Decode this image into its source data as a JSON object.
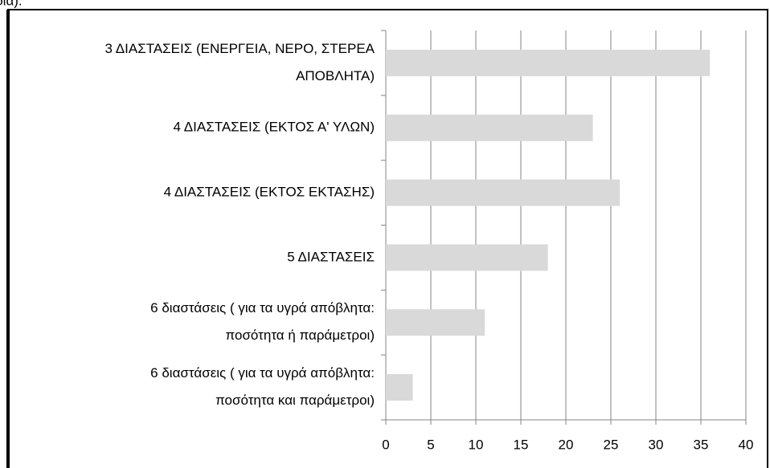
{
  "caption": "ρια).",
  "chart_data": {
    "type": "barh",
    "categories": [
      [
        "3 ΔΙΑΣΤΑΣΕΙΣ (ΕΝΕΡΓΕΙΑ, ΝΕΡΟ, ΣΤΕΡΕΑ",
        "ΑΠΟΒΛΗΤΑ)"
      ],
      [
        "4 ΔΙΑΣΤΑΣΕΙΣ (ΕΚΤΟΣ Α' ΥΛΩΝ)"
      ],
      [
        "4 ΔΙΑΣΤΑΣΕΙΣ (ΕΚΤΟΣ ΕΚΤΑΣΗΣ)"
      ],
      [
        "5 ΔΙΑΣΤΑΣΕΙΣ"
      ],
      [
        "6 διαστάσεις ( για τα υγρά απόβλητα:",
        "ποσότητα ή παράμετροι)"
      ],
      [
        "6 διαστάσεις ( για τα υγρά απόβλητα:",
        "ποσότητα και παράμετροι)"
      ]
    ],
    "values": [
      36,
      23,
      26,
      18,
      11,
      3
    ],
    "color": "#d9d9d9",
    "xlim": [
      0,
      40
    ],
    "xticks": [
      0,
      5,
      10,
      15,
      20,
      25,
      30,
      35,
      40
    ],
    "grid": true
  }
}
